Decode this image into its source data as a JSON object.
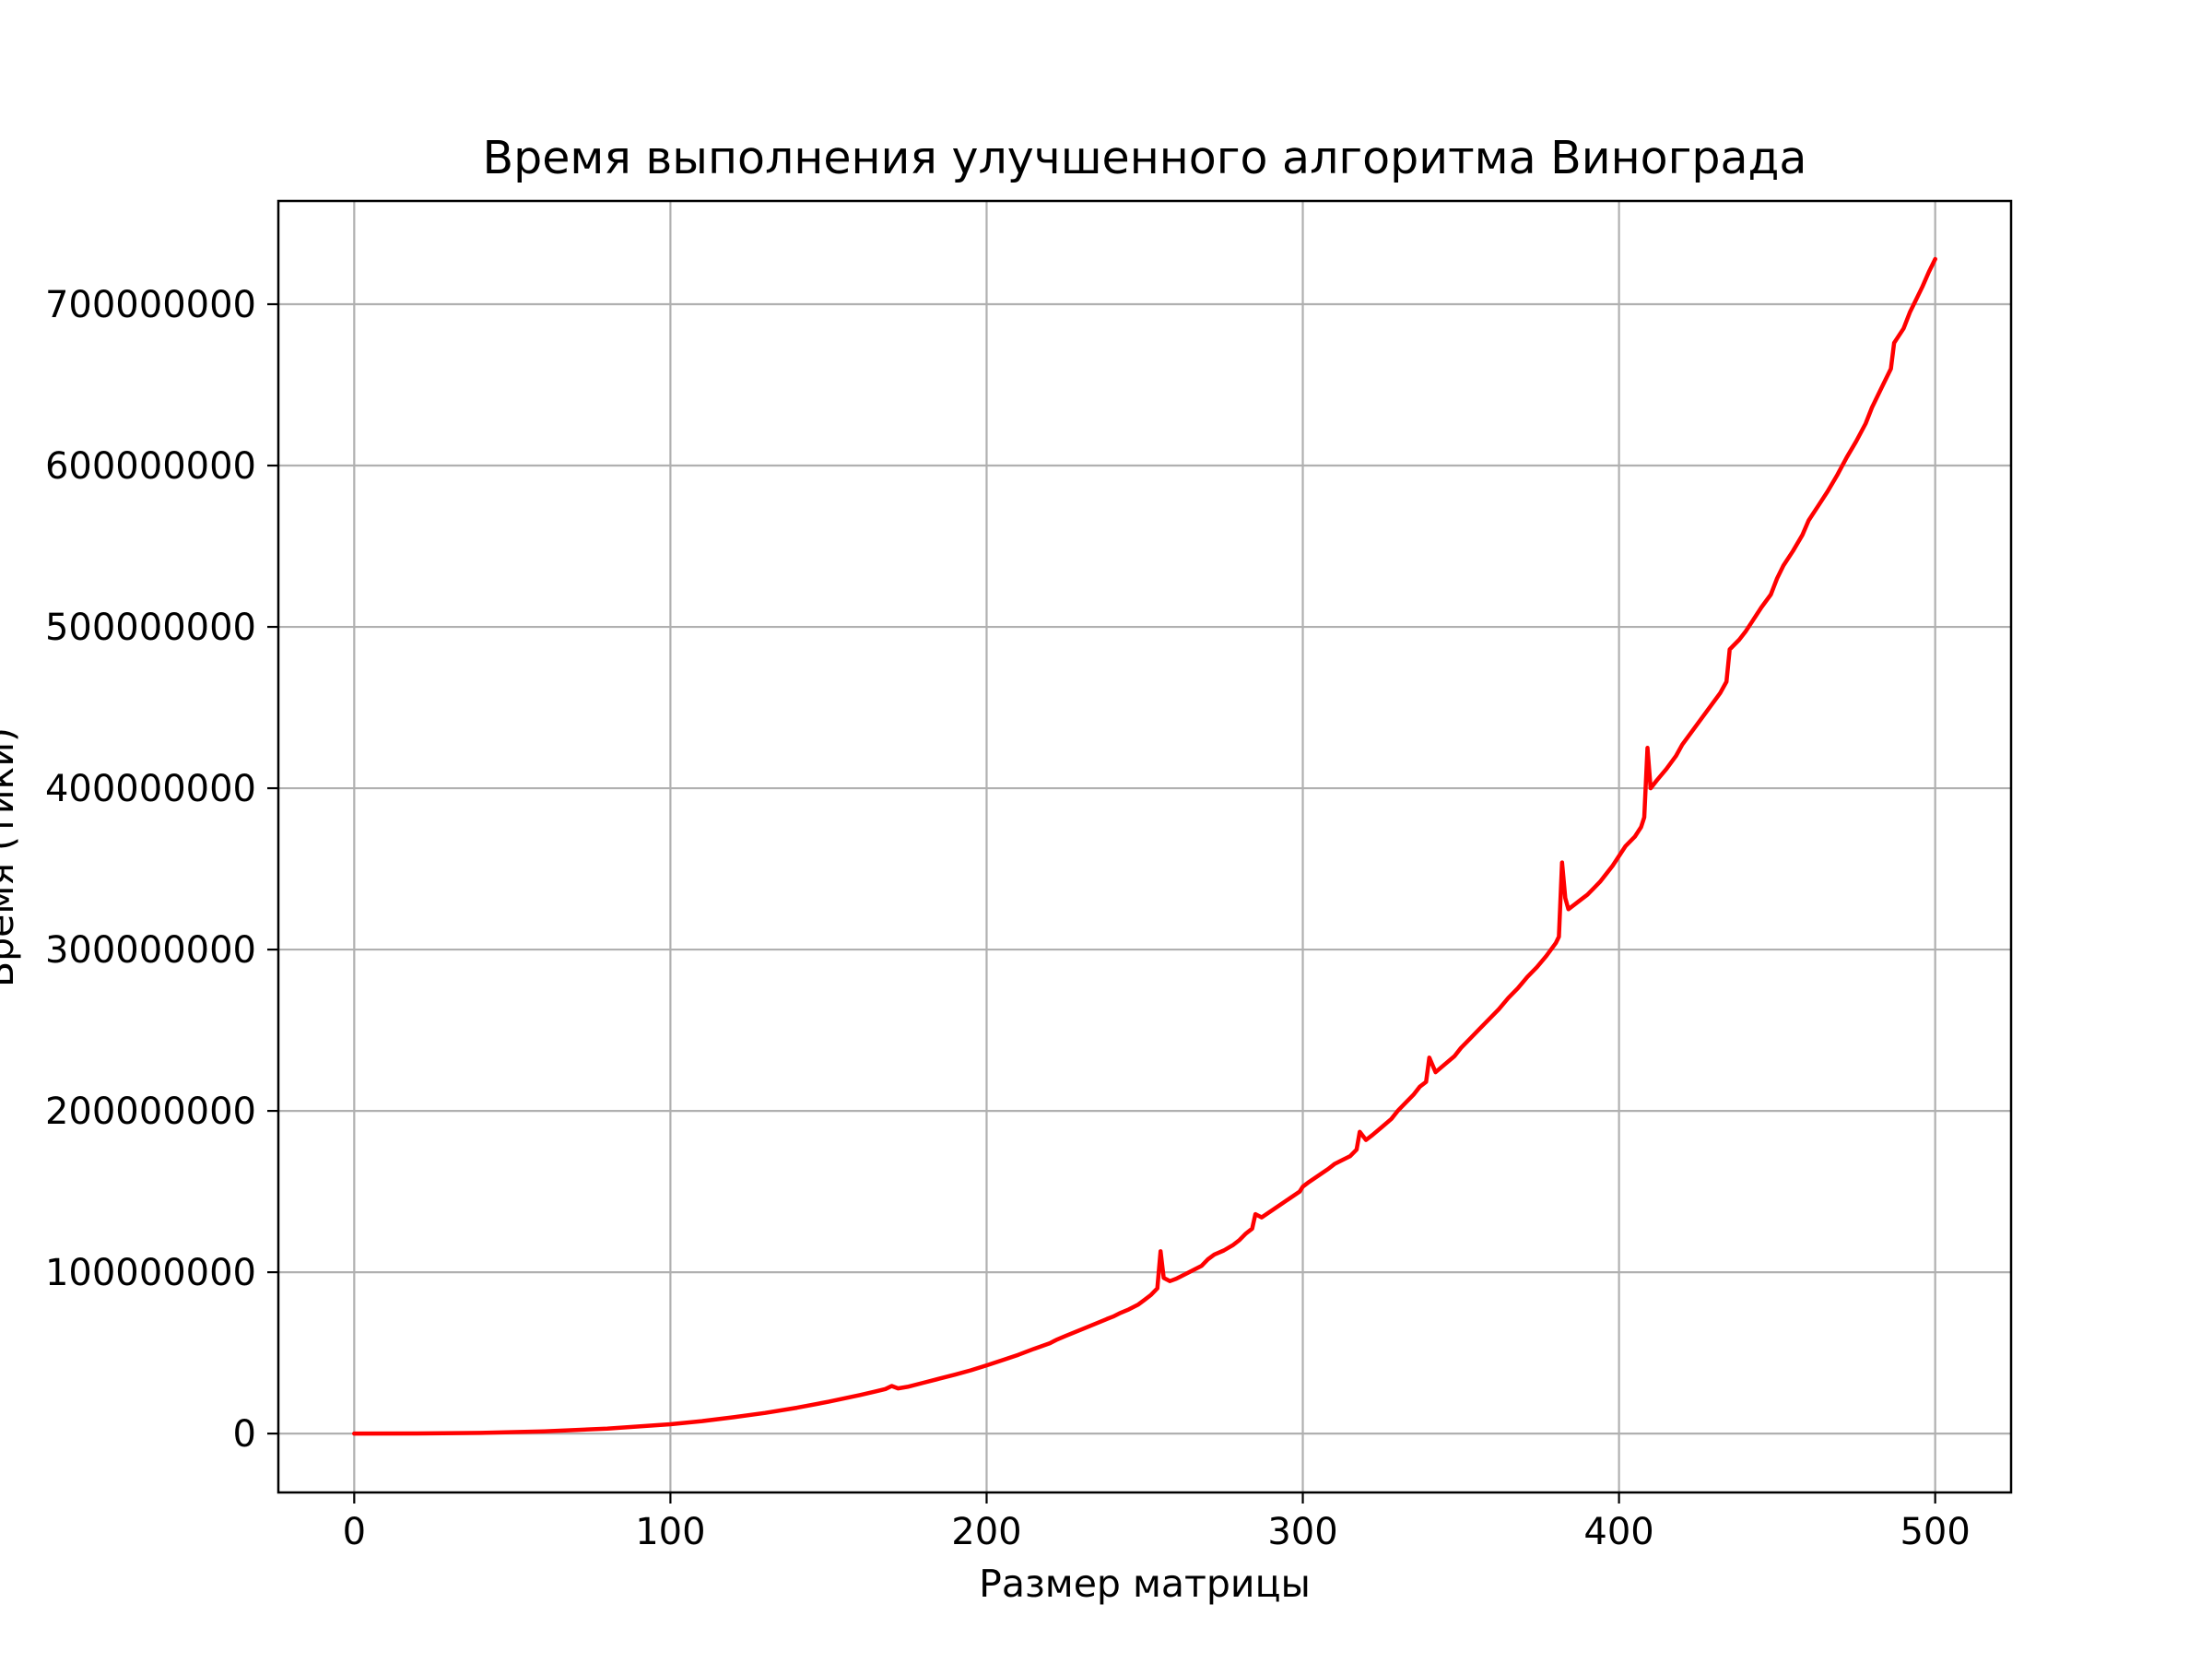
{
  "chart_data": {
    "type": "line",
    "title": "Время выполнения улучшенного алгоритма Винограда",
    "xlabel": "Размер матрицы",
    "ylabel": "Время (тики)",
    "xlim": [
      -24,
      524
    ],
    "ylim": [
      -36500000,
      764000000
    ],
    "x_ticks": [
      0,
      100,
      200,
      300,
      400,
      500
    ],
    "x_tick_labels": [
      "0",
      "100",
      "200",
      "300",
      "400",
      "500"
    ],
    "y_ticks": [
      0,
      100000000,
      200000000,
      300000000,
      400000000,
      500000000,
      600000000,
      700000000
    ],
    "y_tick_labels": [
      "0",
      "100000000",
      "200000000",
      "300000000",
      "400000000",
      "500000000",
      "600000000",
      "700000000"
    ],
    "grid": true,
    "legend": "none",
    "colors": {
      "series": "#ff0000",
      "grid": "#b0b0b0",
      "axes": "#000000",
      "background": "#ffffff"
    },
    "series": [
      {
        "x": [
          0,
          20,
          40,
          60,
          80,
          100,
          110,
          120,
          130,
          140,
          150,
          160,
          165,
          168,
          170,
          172,
          175,
          180,
          185,
          190,
          195,
          200,
          205,
          210,
          215,
          220,
          222,
          225,
          230,
          235,
          238,
          240,
          242,
          245,
          248,
          250,
          252,
          254,
          255,
          256,
          258,
          260,
          262,
          265,
          268,
          270,
          272,
          275,
          278,
          280,
          282,
          284,
          285,
          287,
          290,
          293,
          296,
          299,
          300,
          302,
          305,
          308,
          310,
          312,
          315,
          317,
          318,
          320,
          322,
          325,
          328,
          330,
          332,
          335,
          337,
          339,
          340,
          342,
          345,
          348,
          350,
          353,
          356,
          359,
          362,
          365,
          368,
          371,
          374,
          377,
          380,
          381,
          382,
          383,
          384,
          386,
          388,
          390,
          392,
          394,
          396,
          398,
          400,
          402,
          405,
          407,
          408,
          409,
          410,
          412,
          415,
          418,
          420,
          423,
          426,
          429,
          432,
          434,
          435,
          436,
          438,
          440,
          442,
          445,
          448,
          450,
          452,
          455,
          458,
          460,
          463,
          466,
          469,
          472,
          475,
          478,
          480,
          483,
          486,
          487,
          488,
          490,
          492,
          494,
          496,
          498,
          500
        ],
        "y": [
          0,
          50000,
          400000,
          1300000,
          3100000,
          5800000,
          7700000,
          10100000,
          12800000,
          16000000,
          19700000,
          23900000,
          26200000,
          27600000,
          29500000,
          28000000,
          29000000,
          31500000,
          34000000,
          36500000,
          39200000,
          42300000,
          45500000,
          48800000,
          52500000,
          56000000,
          58000000,
          60500000,
          64500000,
          68500000,
          71000000,
          72500000,
          74500000,
          77000000,
          80000000,
          83000000,
          86000000,
          90000000,
          113000000,
          96500000,
          94500000,
          96000000,
          98000000,
          101000000,
          104000000,
          108000000,
          111000000,
          113500000,
          117000000,
          120000000,
          124000000,
          127000000,
          136000000,
          134000000,
          138000000,
          142000000,
          146000000,
          150000000,
          153000000,
          156000000,
          160000000,
          164000000,
          167000000,
          169000000,
          172000000,
          176000000,
          187000000,
          182000000,
          185000000,
          190000000,
          195000000,
          200000000,
          204000000,
          210000000,
          215000000,
          218000000,
          233000000,
          224000000,
          229000000,
          234000000,
          239000000,
          245000000,
          251000000,
          257000000,
          263000000,
          270000000,
          276000000,
          283000000,
          289000000,
          296000000,
          304000000,
          308000000,
          354000000,
          332000000,
          325000000,
          328000000,
          331000000,
          334000000,
          338000000,
          342000000,
          347000000,
          352000000,
          358000000,
          364000000,
          370000000,
          376000000,
          382000000,
          425000000,
          400000000,
          405000000,
          412000000,
          420000000,
          427000000,
          435000000,
          443000000,
          451000000,
          459000000,
          466000000,
          486000000,
          488000000,
          492000000,
          497000000,
          503000000,
          512000000,
          520000000,
          530000000,
          538000000,
          547000000,
          557000000,
          566000000,
          575000000,
          584000000,
          594000000,
          605000000,
          615000000,
          626000000,
          636000000,
          648000000,
          660000000,
          676000000,
          679000000,
          685000000,
          695000000,
          703000000,
          711000000,
          720000000,
          728000000
        ]
      }
    ]
  }
}
